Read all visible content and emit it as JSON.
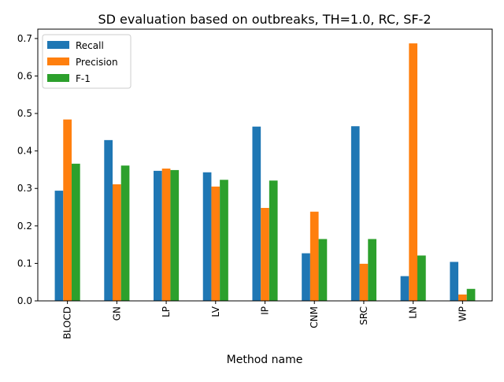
{
  "chart_data": {
    "type": "bar",
    "title": "SD evaluation based on outbreaks, TH=1.0, RC, SF-2",
    "xlabel": "Method name",
    "ylabel": "",
    "ylim": [
      0,
      0.725
    ],
    "yticks": [
      0.0,
      0.1,
      0.2,
      0.3,
      0.4,
      0.5,
      0.6,
      0.7
    ],
    "ytick_labels": [
      "0.0",
      "0.1",
      "0.2",
      "0.3",
      "0.4",
      "0.5",
      "0.6",
      "0.7"
    ],
    "categories": [
      "BLOCD",
      "GN",
      "LP",
      "LV",
      "IP",
      "CNM",
      "SRC",
      "LN",
      "WP"
    ],
    "series": [
      {
        "name": "Recall",
        "color": "#1f77b4",
        "values": [
          0.294,
          0.429,
          0.347,
          0.343,
          0.465,
          0.127,
          0.466,
          0.066,
          0.104
        ]
      },
      {
        "name": "Precision",
        "color": "#ff7f0e",
        "values": [
          0.484,
          0.311,
          0.353,
          0.305,
          0.248,
          0.238,
          0.099,
          0.687,
          0.017
        ]
      },
      {
        "name": "F-1",
        "color": "#2ca02c",
        "values": [
          0.366,
          0.361,
          0.349,
          0.323,
          0.321,
          0.165,
          0.165,
          0.121,
          0.032
        ]
      }
    ],
    "grid": false,
    "legend_position": "top-left"
  }
}
